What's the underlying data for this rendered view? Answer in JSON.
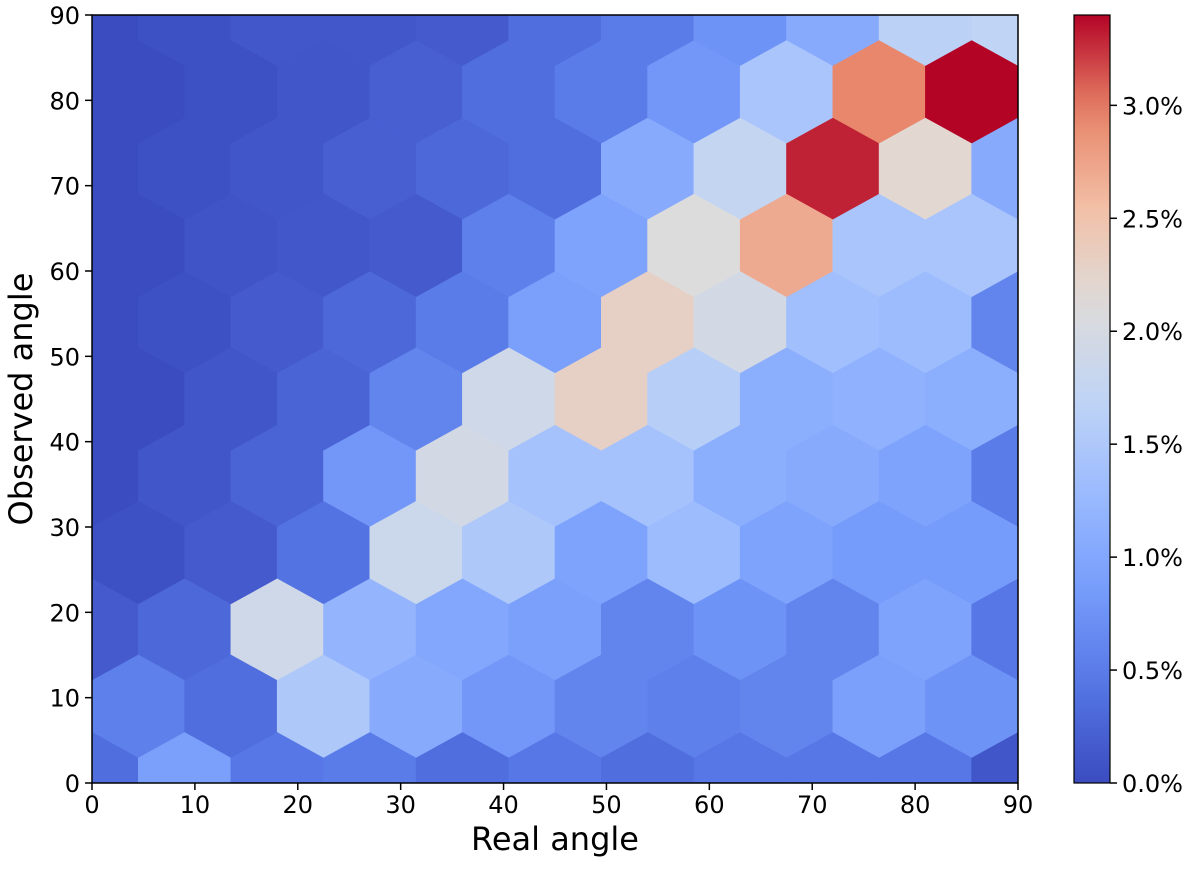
{
  "chart_data": {
    "type": "heatmap",
    "subtype": "hexbin",
    "xlabel": "Real angle",
    "ylabel": "Observed angle",
    "xlim": [
      0,
      90
    ],
    "ylim": [
      0,
      90
    ],
    "x_ticks": [
      "0",
      "10",
      "20",
      "30",
      "40",
      "50",
      "60",
      "70",
      "80",
      "90"
    ],
    "y_ticks": [
      "0",
      "10",
      "20",
      "30",
      "40",
      "50",
      "60",
      "70",
      "80",
      "90"
    ],
    "colorbar": {
      "colormap": "coolwarm",
      "range": [
        0.0,
        3.4
      ],
      "unit": "%",
      "ticks": [
        "0.0%",
        "0.5%",
        "1.0%",
        "1.5%",
        "2.0%",
        "2.5%",
        "3.0%"
      ],
      "tick_values": [
        0.0,
        0.5,
        1.0,
        1.5,
        2.0,
        2.5,
        3.0
      ]
    },
    "cell_spacing": {
      "dx": 9,
      "dy": 9
    },
    "grid_note": "columns A at x=0,9,...,90 with y=0,18,...,90; columns B at x=4.5,13.5,...,85.5 with y=9,27,...,81",
    "colsA": [
      {
        "x": 0,
        "values": [
          0.35,
          0.15,
          0.0,
          0.0,
          0.0,
          0.0
        ]
      },
      {
        "x": 9,
        "values": [
          0.9,
          0.3,
          0.1,
          0.05,
          0.05,
          0.05
        ]
      },
      {
        "x": 18,
        "values": [
          0.45,
          1.9,
          0.25,
          0.15,
          0.1,
          0.12
        ]
      },
      {
        "x": 27,
        "values": [
          0.5,
          1.2,
          0.8,
          0.3,
          0.2,
          0.12
        ]
      },
      {
        "x": 36,
        "values": [
          0.35,
          1.0,
          1.95,
          0.5,
          0.3,
          0.15
        ]
      },
      {
        "x": 45,
        "values": [
          0.45,
          0.9,
          1.4,
          0.9,
          0.35,
          0.35
        ]
      },
      {
        "x": 54,
        "values": [
          0.35,
          0.6,
          1.4,
          2.3,
          1.05,
          0.5
        ]
      },
      {
        "x": 63,
        "values": [
          0.45,
          0.75,
          1.1,
          1.95,
          1.75,
          0.75
        ]
      },
      {
        "x": 72,
        "values": [
          0.45,
          0.6,
          1.05,
          1.35,
          3.3,
          1.05
        ]
      },
      {
        "x": 81,
        "values": [
          0.45,
          0.95,
          0.95,
          1.3,
          2.2,
          1.65
        ]
      },
      {
        "x": 90,
        "values": [
          0.1,
          0.45,
          0.5,
          0.6,
          1.05,
          1.7
        ]
      }
    ],
    "colsB": [
      {
        "x": 4.5,
        "values": [
          0.55,
          0.05,
          0.0,
          0.0,
          0.0
        ]
      },
      {
        "x": 13.5,
        "values": [
          0.35,
          0.15,
          0.1,
          0.08,
          0.05
        ]
      },
      {
        "x": 22.5,
        "values": [
          1.5,
          0.4,
          0.25,
          0.12,
          0.1
        ]
      },
      {
        "x": 31.5,
        "values": [
          1.05,
          1.85,
          0.6,
          0.15,
          0.2
        ]
      },
      {
        "x": 40.5,
        "values": [
          0.8,
          1.5,
          1.9,
          0.55,
          0.35
        ]
      },
      {
        "x": 49.5,
        "values": [
          0.6,
          0.95,
          2.3,
          0.95,
          0.5
        ]
      },
      {
        "x": 58.5,
        "values": [
          0.55,
          1.3,
          1.6,
          2.1,
          0.8
        ]
      },
      {
        "x": 67.5,
        "values": [
          0.6,
          0.95,
          1.1,
          2.7,
          1.45
        ]
      },
      {
        "x": 76.5,
        "values": [
          0.9,
          0.85,
          1.15,
          1.45,
          2.95
        ]
      },
      {
        "x": 85.5,
        "values": [
          0.75,
          0.85,
          1.1,
          1.45,
          3.4
        ]
      }
    ]
  }
}
